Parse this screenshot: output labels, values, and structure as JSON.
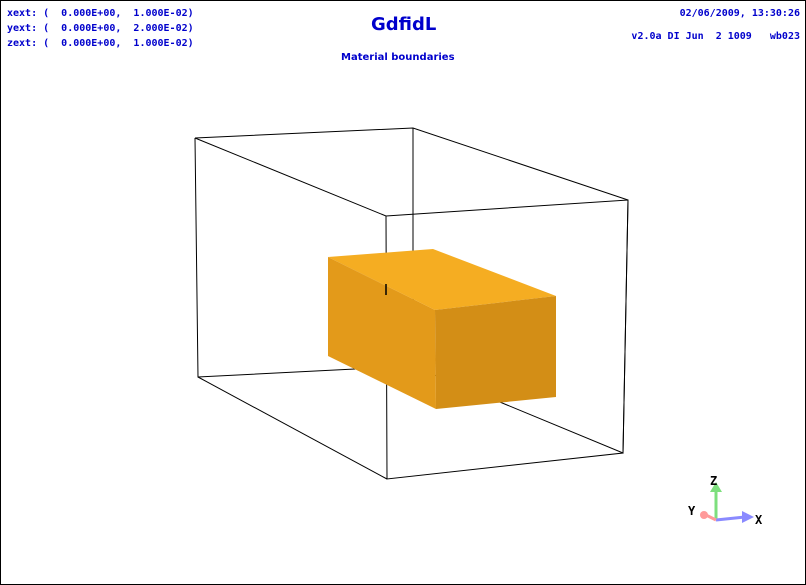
{
  "header": {
    "extents": [
      "xext: (  0.000E+00,  1.000E-02)",
      "yext: (  0.000E+00,  2.000E-02)",
      "zext: (  0.000E+00,  1.000E-02)"
    ],
    "title": "GdfidL",
    "subtitle": "Material boundaries",
    "datetime": "02/06/2009, 13:30:26",
    "version": "v2.0a DI Jun  2 1009   wb023"
  },
  "axes_indicator": {
    "labels": {
      "x": "X",
      "y": "Y",
      "z": "Z"
    },
    "colors": {
      "x": "#8a8aff",
      "y": "#ff9a9a",
      "z": "#7ddf7d"
    }
  },
  "colors": {
    "text": "#0000cc",
    "bounding_box": "#000000",
    "block_front": "#e39a1a",
    "block_top": "#f5ad22",
    "block_side": "#d38e16"
  }
}
